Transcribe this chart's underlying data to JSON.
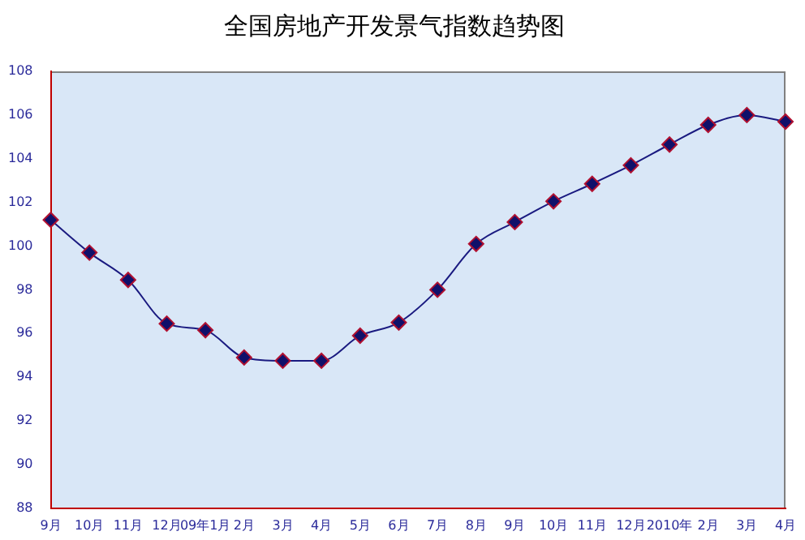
{
  "chart_data": {
    "type": "line",
    "title": "全国房地产开发景气指数趋势图",
    "categories": [
      "9月",
      "10月",
      "11月",
      "12月",
      "09年1月",
      "2月",
      "3月",
      "4月",
      "5月",
      "6月",
      "7月",
      "8月",
      "9月",
      "10月",
      "11月",
      "12月",
      "2010年",
      "2月",
      "3月",
      "4月"
    ],
    "series": [
      {
        "color": "#1a1a80",
        "values": [
          101.2,
          99.7,
          98.45,
          96.45,
          96.15,
          94.9,
          94.75,
          94.75,
          95.9,
          96.5,
          98.0,
          100.1,
          101.1,
          102.05,
          102.85,
          103.7,
          104.65,
          105.55,
          106.0,
          105.7
        ]
      }
    ],
    "ylim": [
      88,
      108
    ],
    "yticks": [
      88,
      90,
      92,
      94,
      96,
      98,
      100,
      102,
      104,
      106,
      108
    ],
    "grid": false,
    "legend": false,
    "marker": "diamond",
    "line_style": "solid"
  }
}
